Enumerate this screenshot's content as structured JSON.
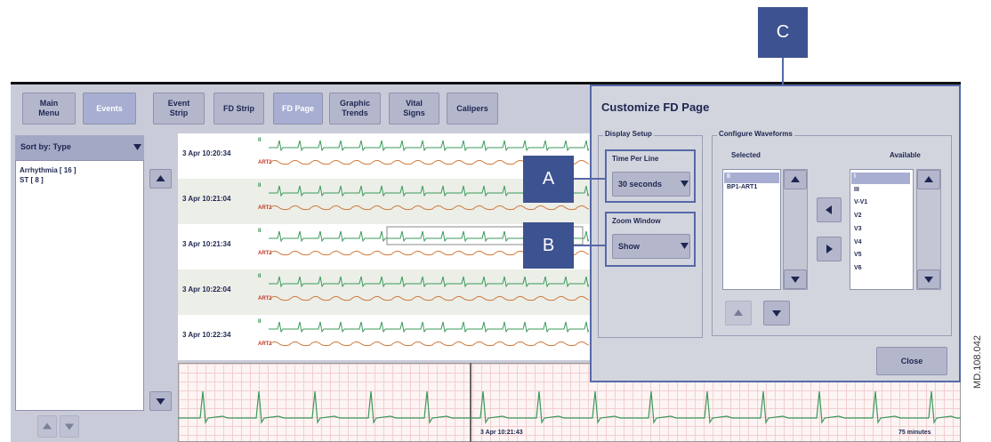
{
  "toolbar": {
    "buttons": [
      "Main Menu",
      "Events",
      "Event Strip",
      "FD Strip",
      "FD Page",
      "Graphic Trends",
      "Vital Signs",
      "Calipers"
    ]
  },
  "sidebar": {
    "sort": "Sort by: Type",
    "items": [
      "Arrhythmia [ 16 ]",
      "ST [ 8 ]"
    ]
  },
  "rows": [
    {
      "time": "3 Apr 10:20:34",
      "ecg_label": "II",
      "art_label": "ART1"
    },
    {
      "time": "3 Apr 10:21:04",
      "ecg_label": "II",
      "art_label": "ART1"
    },
    {
      "time": "3 Apr 10:21:34",
      "ecg_label": "II",
      "art_label": "ART1"
    },
    {
      "time": "3 Apr 10:22:04",
      "ecg_label": "II",
      "art_label": "ART1"
    },
    {
      "time": "3 Apr 10:22:34",
      "ecg_label": "II",
      "art_label": "ART1"
    }
  ],
  "zoom_strip": {
    "time": "3 Apr 10:21:43",
    "duration": "75 minutes"
  },
  "dialog": {
    "title": "Customize FD Page",
    "display_setup": {
      "heading": "Display Setup",
      "time_per_line": {
        "label": "Time Per Line",
        "value": "30 seconds"
      },
      "zoom_window": {
        "label": "Zoom Window",
        "value": "Show"
      }
    },
    "configure_waveforms": {
      "heading": "Configure Waveforms",
      "selected_label": "Selected",
      "available_label": "Available",
      "selected": [
        "II",
        "BP1-ART1"
      ],
      "available": [
        "I",
        "III",
        "V-V1",
        "V2",
        "V3",
        "V4",
        "V5",
        "V6"
      ]
    },
    "close": "Close"
  },
  "callouts": [
    "A",
    "B",
    "C"
  ],
  "figure_id": "MD.108.042"
}
